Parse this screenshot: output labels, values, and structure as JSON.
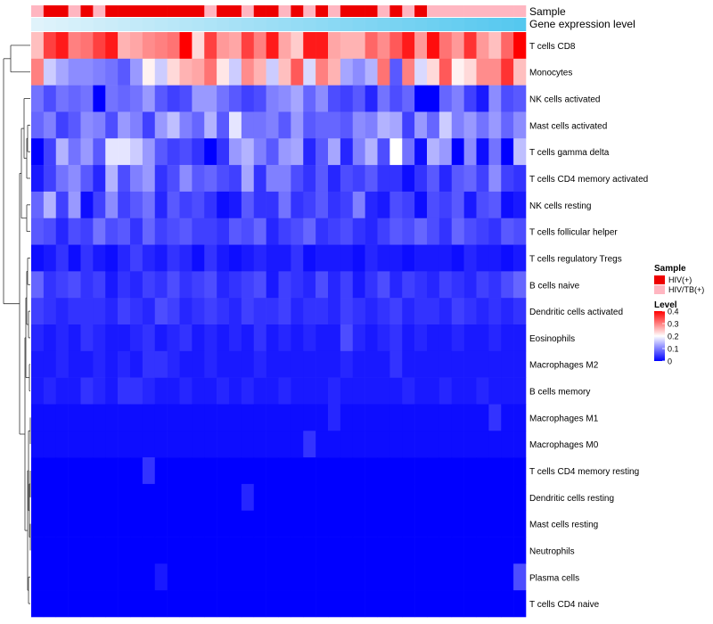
{
  "chart_data": {
    "type": "heatmap",
    "title": "",
    "annotation_tracks": [
      {
        "name": "Sample",
        "label": "Sample"
      },
      {
        "name": "Gene expression level",
        "label": "Gene expression level"
      }
    ],
    "rows": [
      "T cells CD8",
      "Monocytes",
      "NK cells activated",
      "Mast cells activated",
      "T cells gamma delta",
      "T cells CD4 memory activated",
      "NK cells resting",
      "T cells follicular helper",
      "T cells regulatory  Tregs",
      "B cells naive",
      "Dendritic cells activated",
      "Eosinophils",
      "Macrophages M2",
      "B cells memory",
      "Macrophages M1",
      "Macrophages M0",
      "T cells CD4 memory resting",
      "Dendritic cells resting",
      "Mast cells resting",
      "Neutrophils",
      "Plasma cells",
      "T cells CD4 naive"
    ],
    "sample_groups": [
      "HIV(+)",
      "HIV/TB(+)"
    ],
    "sample_colors": {
      "HIV(+)": "#ee0000",
      "HIV/TB(+)": "#ffb6c1"
    },
    "sample_annotation": [
      1,
      0,
      0,
      1,
      0,
      1,
      0,
      0,
      0,
      0,
      0,
      0,
      0,
      0,
      1,
      0,
      0,
      1,
      0,
      0,
      1,
      0,
      1,
      0,
      1,
      0,
      0,
      0,
      1,
      0,
      1,
      0,
      1,
      1,
      1,
      1,
      1,
      1,
      1,
      1
    ],
    "gene_expression_colors": [
      "#e0f3fb",
      "#55c8ef"
    ],
    "values": [
      [
        0.25,
        0.35,
        0.38,
        0.3,
        0.31,
        0.35,
        0.38,
        0.26,
        0.27,
        0.29,
        0.3,
        0.31,
        0.4,
        0.23,
        0.35,
        0.28,
        0.27,
        0.35,
        0.3,
        0.38,
        0.27,
        0.24,
        0.38,
        0.38,
        0.27,
        0.26,
        0.26,
        0.32,
        0.29,
        0.33,
        0.38,
        0.28,
        0.39,
        0.31,
        0.28,
        0.36,
        0.28,
        0.25,
        0.32,
        0.4
      ],
      [
        0.3,
        0.16,
        0.13,
        0.11,
        0.11,
        0.1,
        0.09,
        0.07,
        0.12,
        0.21,
        0.16,
        0.23,
        0.26,
        0.27,
        0.31,
        0.22,
        0.16,
        0.29,
        0.26,
        0.16,
        0.25,
        0.33,
        0.17,
        0.3,
        0.26,
        0.13,
        0.11,
        0.14,
        0.31,
        0.07,
        0.3,
        0.17,
        0.23,
        0.33,
        0.21,
        0.23,
        0.29,
        0.29,
        0.36,
        0.25
      ],
      [
        0.09,
        0.06,
        0.09,
        0.08,
        0.09,
        0.0,
        0.09,
        0.08,
        0.09,
        0.12,
        0.07,
        0.05,
        0.06,
        0.12,
        0.12,
        0.09,
        0.07,
        0.05,
        0.06,
        0.1,
        0.11,
        0.13,
        0.08,
        0.11,
        0.06,
        0.05,
        0.07,
        0.03,
        0.09,
        0.06,
        0.08,
        0.0,
        0.0,
        0.08,
        0.1,
        0.05,
        0.02,
        0.11,
        0.06,
        0.07
      ],
      [
        0.08,
        0.1,
        0.05,
        0.07,
        0.11,
        0.1,
        0.06,
        0.12,
        0.1,
        0.05,
        0.12,
        0.15,
        0.1,
        0.08,
        0.14,
        0.07,
        0.18,
        0.09,
        0.09,
        0.1,
        0.07,
        0.12,
        0.07,
        0.08,
        0.08,
        0.07,
        0.11,
        0.1,
        0.14,
        0.13,
        0.05,
        0.12,
        0.08,
        0.16,
        0.1,
        0.12,
        0.09,
        0.12,
        0.08,
        0.11
      ],
      [
        0.0,
        0.05,
        0.14,
        0.09,
        0.12,
        0.07,
        0.18,
        0.18,
        0.16,
        0.12,
        0.07,
        0.05,
        0.06,
        0.04,
        0.0,
        0.04,
        0.12,
        0.14,
        0.1,
        0.07,
        0.12,
        0.13,
        0.03,
        0.07,
        0.13,
        0.03,
        0.1,
        0.14,
        0.06,
        0.2,
        0.09,
        0.01,
        0.14,
        0.12,
        0.0,
        0.11,
        0.01,
        0.09,
        0.0,
        0.15
      ],
      [
        0.02,
        0.05,
        0.09,
        0.11,
        0.07,
        0.03,
        0.14,
        0.06,
        0.1,
        0.12,
        0.04,
        0.06,
        0.11,
        0.07,
        0.08,
        0.06,
        0.05,
        0.13,
        0.04,
        0.1,
        0.1,
        0.06,
        0.04,
        0.07,
        0.03,
        0.06,
        0.05,
        0.07,
        0.04,
        0.04,
        0.01,
        0.04,
        0.07,
        0.03,
        0.07,
        0.08,
        0.05,
        0.11,
        0.05,
        0.04
      ],
      [
        0.08,
        0.14,
        0.05,
        0.12,
        0.01,
        0.05,
        0.11,
        0.05,
        0.07,
        0.09,
        0.03,
        0.07,
        0.05,
        0.06,
        0.04,
        0.01,
        0.02,
        0.07,
        0.04,
        0.04,
        0.09,
        0.04,
        0.05,
        0.07,
        0.04,
        0.05,
        0.1,
        0.03,
        0.02,
        0.06,
        0.05,
        0.01,
        0.06,
        0.05,
        0.07,
        0.02,
        0.06,
        0.07,
        0.01,
        0.02
      ],
      [
        0.07,
        0.06,
        0.03,
        0.06,
        0.05,
        0.09,
        0.06,
        0.07,
        0.04,
        0.08,
        0.05,
        0.06,
        0.07,
        0.05,
        0.05,
        0.04,
        0.07,
        0.06,
        0.08,
        0.03,
        0.05,
        0.06,
        0.08,
        0.04,
        0.05,
        0.06,
        0.04,
        0.03,
        0.05,
        0.07,
        0.06,
        0.08,
        0.06,
        0.04,
        0.08,
        0.06,
        0.05,
        0.04,
        0.07,
        0.06
      ],
      [
        0.01,
        0.02,
        0.04,
        0.01,
        0.04,
        0.02,
        0.01,
        0.03,
        0.05,
        0.03,
        0.02,
        0.04,
        0.03,
        0.01,
        0.04,
        0.02,
        0.01,
        0.02,
        0.03,
        0.02,
        0.02,
        0.04,
        0.01,
        0.02,
        0.02,
        0.02,
        0.01,
        0.03,
        0.02,
        0.02,
        0.01,
        0.02,
        0.02,
        0.02,
        0.01,
        0.03,
        0.02,
        0.02,
        0.01,
        0.02
      ],
      [
        0.08,
        0.04,
        0.05,
        0.06,
        0.04,
        0.05,
        0.02,
        0.04,
        0.03,
        0.05,
        0.04,
        0.06,
        0.04,
        0.05,
        0.06,
        0.03,
        0.04,
        0.05,
        0.06,
        0.02,
        0.05,
        0.04,
        0.03,
        0.06,
        0.03,
        0.05,
        0.02,
        0.04,
        0.06,
        0.03,
        0.05,
        0.04,
        0.03,
        0.05,
        0.04,
        0.03,
        0.05,
        0.04,
        0.06,
        0.08
      ],
      [
        0.05,
        0.04,
        0.03,
        0.04,
        0.04,
        0.04,
        0.03,
        0.05,
        0.04,
        0.03,
        0.06,
        0.05,
        0.03,
        0.04,
        0.05,
        0.04,
        0.03,
        0.05,
        0.04,
        0.04,
        0.05,
        0.03,
        0.04,
        0.04,
        0.03,
        0.05,
        0.04,
        0.03,
        0.04,
        0.05,
        0.03,
        0.04,
        0.04,
        0.03,
        0.05,
        0.04,
        0.03,
        0.04,
        0.03,
        0.04
      ],
      [
        0.03,
        0.02,
        0.03,
        0.02,
        0.04,
        0.03,
        0.02,
        0.02,
        0.03,
        0.04,
        0.02,
        0.03,
        0.04,
        0.02,
        0.03,
        0.02,
        0.03,
        0.02,
        0.04,
        0.02,
        0.03,
        0.02,
        0.03,
        0.02,
        0.02,
        0.06,
        0.03,
        0.02,
        0.03,
        0.04,
        0.02,
        0.03,
        0.02,
        0.02,
        0.03,
        0.02,
        0.02,
        0.03,
        0.02,
        0.02
      ],
      [
        0.02,
        0.02,
        0.03,
        0.02,
        0.02,
        0.03,
        0.02,
        0.03,
        0.02,
        0.04,
        0.04,
        0.03,
        0.02,
        0.02,
        0.03,
        0.02,
        0.02,
        0.02,
        0.03,
        0.02,
        0.02,
        0.02,
        0.02,
        0.02,
        0.02,
        0.03,
        0.02,
        0.02,
        0.02,
        0.04,
        0.02,
        0.02,
        0.02,
        0.02,
        0.02,
        0.02,
        0.02,
        0.02,
        0.02,
        0.02
      ],
      [
        0.02,
        0.03,
        0.02,
        0.02,
        0.04,
        0.03,
        0.02,
        0.04,
        0.04,
        0.03,
        0.02,
        0.02,
        0.03,
        0.02,
        0.02,
        0.03,
        0.02,
        0.03,
        0.02,
        0.02,
        0.03,
        0.02,
        0.02,
        0.02,
        0.03,
        0.02,
        0.02,
        0.02,
        0.02,
        0.02,
        0.03,
        0.02,
        0.02,
        0.03,
        0.02,
        0.02,
        0.03,
        0.02,
        0.02,
        0.02
      ],
      [
        0.01,
        0.01,
        0.01,
        0.01,
        0.01,
        0.01,
        0.01,
        0.01,
        0.01,
        0.01,
        0.01,
        0.01,
        0.01,
        0.01,
        0.01,
        0.01,
        0.01,
        0.01,
        0.01,
        0.01,
        0.01,
        0.01,
        0.01,
        0.01,
        0.03,
        0.01,
        0.01,
        0.01,
        0.01,
        0.01,
        0.01,
        0.01,
        0.01,
        0.01,
        0.01,
        0.01,
        0.01,
        0.04,
        0.01,
        0.01
      ],
      [
        0.01,
        0.01,
        0.01,
        0.01,
        0.01,
        0.01,
        0.01,
        0.01,
        0.01,
        0.01,
        0.01,
        0.01,
        0.01,
        0.01,
        0.01,
        0.01,
        0.01,
        0.01,
        0.01,
        0.01,
        0.01,
        0.01,
        0.04,
        0.01,
        0.01,
        0.01,
        0.01,
        0.01,
        0.01,
        0.01,
        0.01,
        0.01,
        0.01,
        0.01,
        0.01,
        0.01,
        0.01,
        0.01,
        0.01,
        0.01
      ],
      [
        0.0,
        0.0,
        0.0,
        0.0,
        0.0,
        0.0,
        0.0,
        0.0,
        0.0,
        0.04,
        0.0,
        0.0,
        0.0,
        0.0,
        0.0,
        0.0,
        0.0,
        0.0,
        0.0,
        0.0,
        0.0,
        0.0,
        0.0,
        0.0,
        0.0,
        0.0,
        0.0,
        0.0,
        0.0,
        0.0,
        0.0,
        0.0,
        0.0,
        0.0,
        0.0,
        0.0,
        0.0,
        0.0,
        0.0,
        0.0
      ],
      [
        0.0,
        0.0,
        0.0,
        0.0,
        0.0,
        0.0,
        0.0,
        0.0,
        0.0,
        0.0,
        0.0,
        0.0,
        0.0,
        0.0,
        0.0,
        0.0,
        0.0,
        0.03,
        0.0,
        0.0,
        0.0,
        0.0,
        0.0,
        0.0,
        0.0,
        0.0,
        0.0,
        0.0,
        0.0,
        0.0,
        0.0,
        0.0,
        0.0,
        0.0,
        0.0,
        0.0,
        0.0,
        0.0,
        0.0,
        0.0
      ],
      [
        0.0,
        0.0,
        0.0,
        0.0,
        0.0,
        0.0,
        0.0,
        0.0,
        0.0,
        0.0,
        0.0,
        0.0,
        0.0,
        0.0,
        0.0,
        0.0,
        0.0,
        0.0,
        0.0,
        0.0,
        0.0,
        0.0,
        0.0,
        0.0,
        0.0,
        0.0,
        0.0,
        0.0,
        0.0,
        0.0,
        0.0,
        0.0,
        0.0,
        0.0,
        0.0,
        0.0,
        0.0,
        0.0,
        0.0,
        0.0
      ],
      [
        0.0,
        0.0,
        0.0,
        0.0,
        0.0,
        0.0,
        0.0,
        0.0,
        0.0,
        0.0,
        0.0,
        0.0,
        0.0,
        0.0,
        0.0,
        0.0,
        0.0,
        0.0,
        0.0,
        0.0,
        0.0,
        0.0,
        0.0,
        0.0,
        0.0,
        0.0,
        0.0,
        0.0,
        0.0,
        0.0,
        0.0,
        0.0,
        0.0,
        0.0,
        0.0,
        0.0,
        0.0,
        0.0,
        0.0,
        0.0
      ],
      [
        0.0,
        0.0,
        0.0,
        0.0,
        0.0,
        0.0,
        0.0,
        0.0,
        0.0,
        0.0,
        0.02,
        0.0,
        0.0,
        0.0,
        0.0,
        0.0,
        0.0,
        0.0,
        0.0,
        0.0,
        0.0,
        0.0,
        0.0,
        0.0,
        0.0,
        0.0,
        0.0,
        0.0,
        0.0,
        0.0,
        0.0,
        0.0,
        0.0,
        0.0,
        0.0,
        0.0,
        0.0,
        0.0,
        0.0,
        0.06
      ],
      [
        0.0,
        0.0,
        0.0,
        0.0,
        0.0,
        0.0,
        0.0,
        0.0,
        0.0,
        0.0,
        0.0,
        0.0,
        0.0,
        0.0,
        0.0,
        0.0,
        0.0,
        0.0,
        0.0,
        0.0,
        0.0,
        0.0,
        0.0,
        0.0,
        0.0,
        0.0,
        0.0,
        0.0,
        0.0,
        0.0,
        0.0,
        0.0,
        0.0,
        0.0,
        0.0,
        0.0,
        0.0,
        0.0,
        0.0,
        0.0
      ]
    ],
    "color_scale": {
      "min": 0,
      "max": 0.4,
      "stops": [
        {
          "value": 0,
          "color": "#0000ff"
        },
        {
          "value": 0.2,
          "color": "#ffffff"
        },
        {
          "value": 0.4,
          "color": "#ff0000"
        }
      ]
    },
    "legend": {
      "sample_title": "Sample",
      "level_title": "Level",
      "level_ticks": [
        "0.4",
        "0.3",
        "0.2",
        "0.1",
        "0"
      ],
      "level_tick_values": [
        0.4,
        0.3,
        0.2,
        0.1,
        0
      ],
      "placement": "right"
    },
    "dendrogram": "rows-left"
  }
}
